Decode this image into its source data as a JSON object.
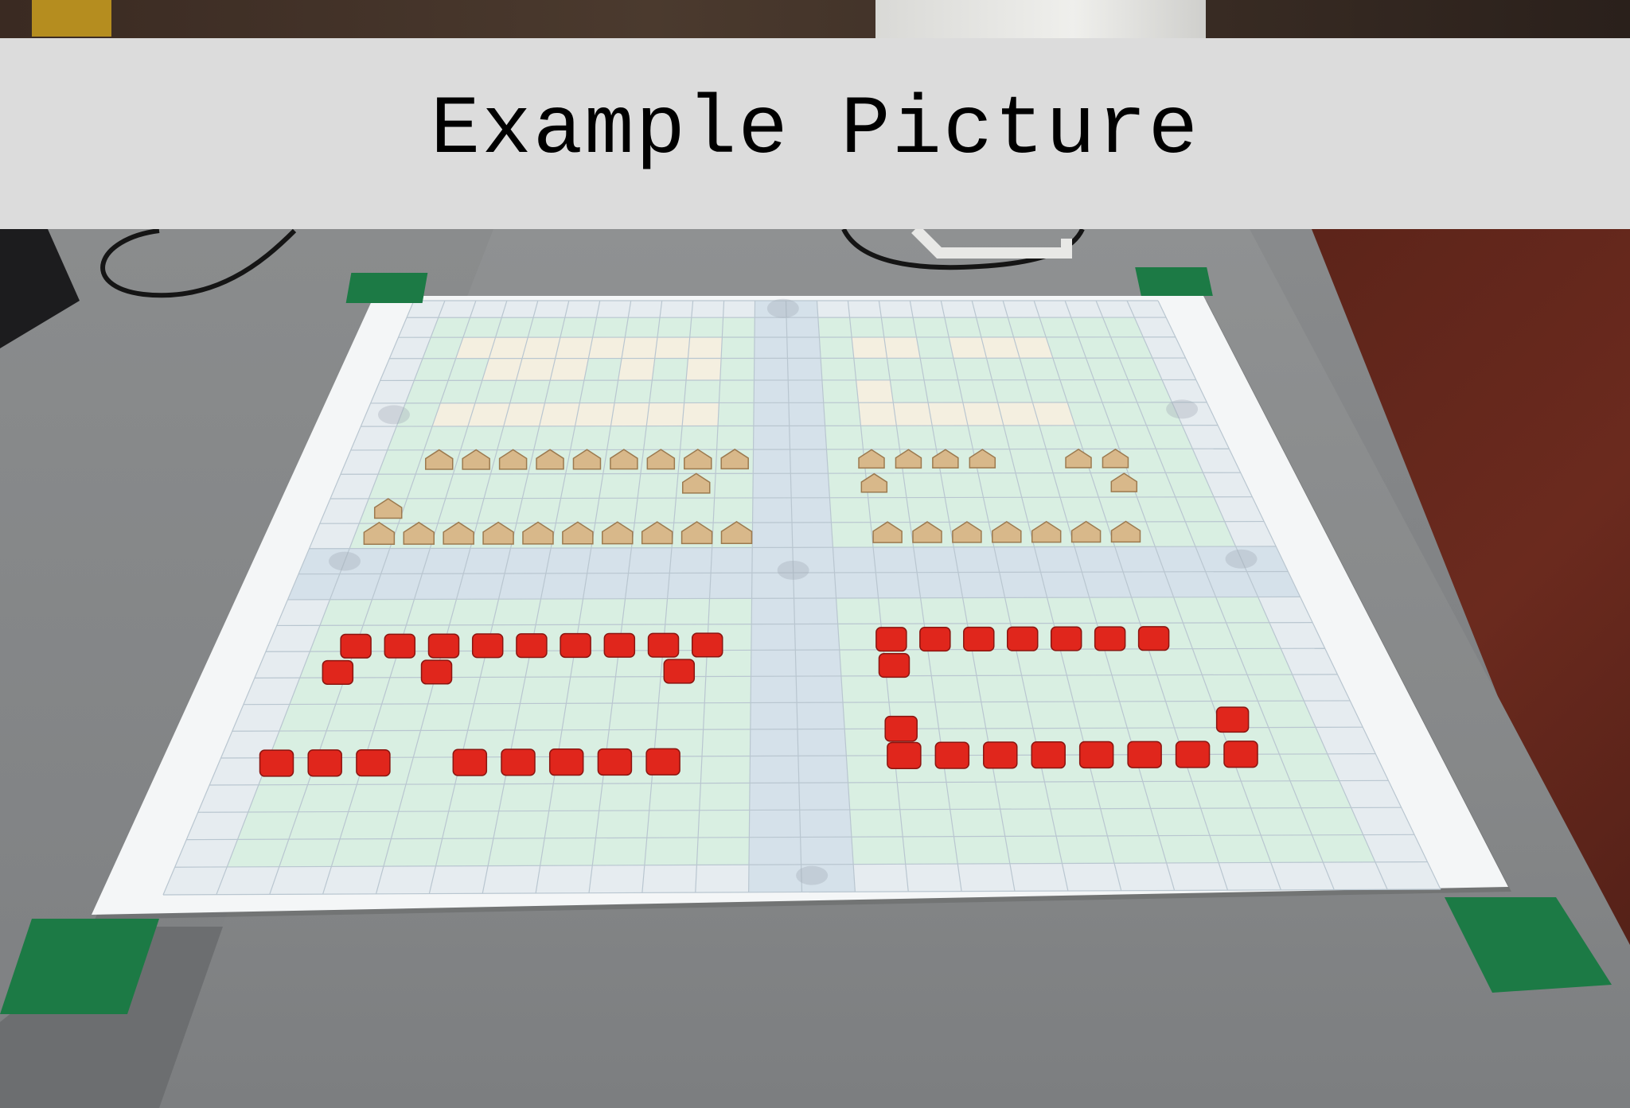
{
  "banner": {
    "title": "Example Picture"
  },
  "scene": {
    "subject": "photo",
    "colors": {
      "banner_background": "#dcdcdc",
      "banner_text": "#000000",
      "mat_white": "#f4f6f7",
      "mat_green": "#d9efe2",
      "mat_blue": "#d5e1ea",
      "mat_cream": "#f4efe0",
      "wooden_piece": "#d8b88a",
      "red_piece": "#e0261c",
      "tape_green": "#1c7a45",
      "table_gray": "#8a8c8e",
      "carpet": "#5e251b"
    }
  }
}
